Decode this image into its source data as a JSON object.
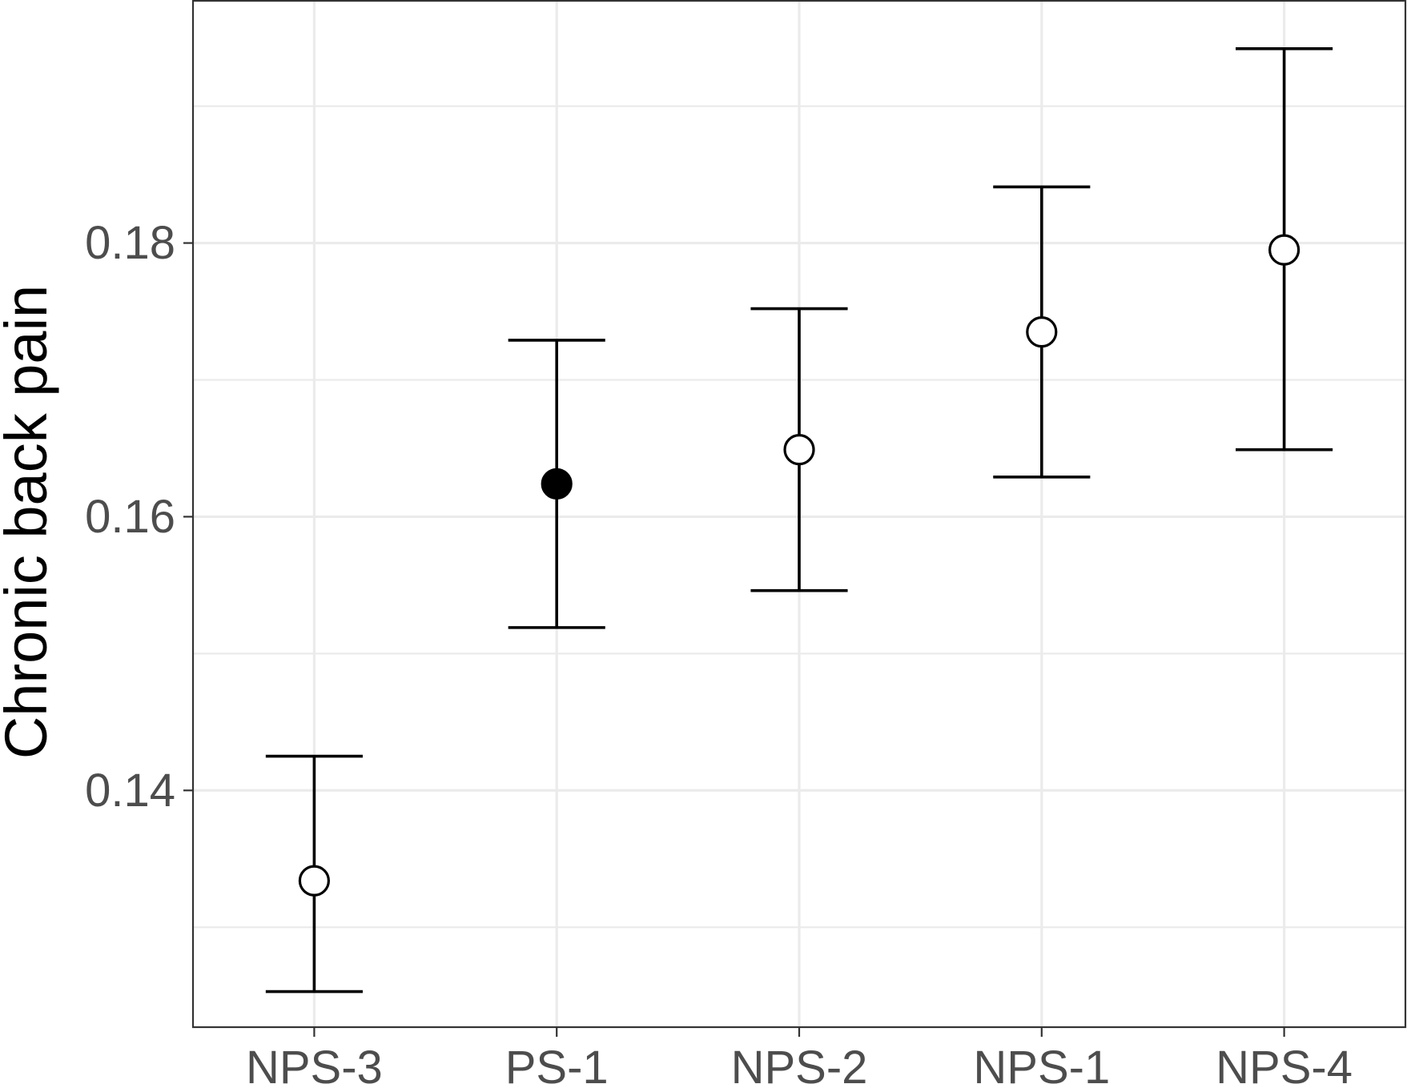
{
  "chart_data": {
    "type": "scatter",
    "title": "",
    "xlabel": "",
    "ylabel": "Chronic back pain",
    "categories": [
      "NPS-3",
      "PS-1",
      "NPS-2",
      "NPS-1",
      "NPS-4"
    ],
    "points": [
      {
        "category": "NPS-3",
        "estimate": 0.1334,
        "lower": 0.1253,
        "upper": 0.1425,
        "marker": "open-circle"
      },
      {
        "category": "PS-1",
        "estimate": 0.1624,
        "lower": 0.1519,
        "upper": 0.1729,
        "marker": "filled-circle"
      },
      {
        "category": "NPS-2",
        "estimate": 0.1649,
        "lower": 0.1546,
        "upper": 0.1752,
        "marker": "open-circle"
      },
      {
        "category": "NPS-1",
        "estimate": 0.1735,
        "lower": 0.1629,
        "upper": 0.1841,
        "marker": "open-circle"
      },
      {
        "category": "NPS-4",
        "estimate": 0.1795,
        "lower": 0.1649,
        "upper": 0.1942,
        "marker": "open-circle"
      }
    ],
    "ylim": [
      0.1227,
      0.1977
    ],
    "y_major_ticks": [
      0.14,
      0.16,
      0.18
    ],
    "y_tick_labels": [
      "0.14",
      "0.16",
      "0.18"
    ],
    "y_minor_ticks": [
      0.13,
      0.15,
      0.17,
      0.19
    ],
    "grid": true,
    "legend": "none",
    "colors": {
      "marks": "#000000",
      "grid": "#ebebeb",
      "tick_text": "#4d4d4d",
      "border": "#333333"
    }
  }
}
